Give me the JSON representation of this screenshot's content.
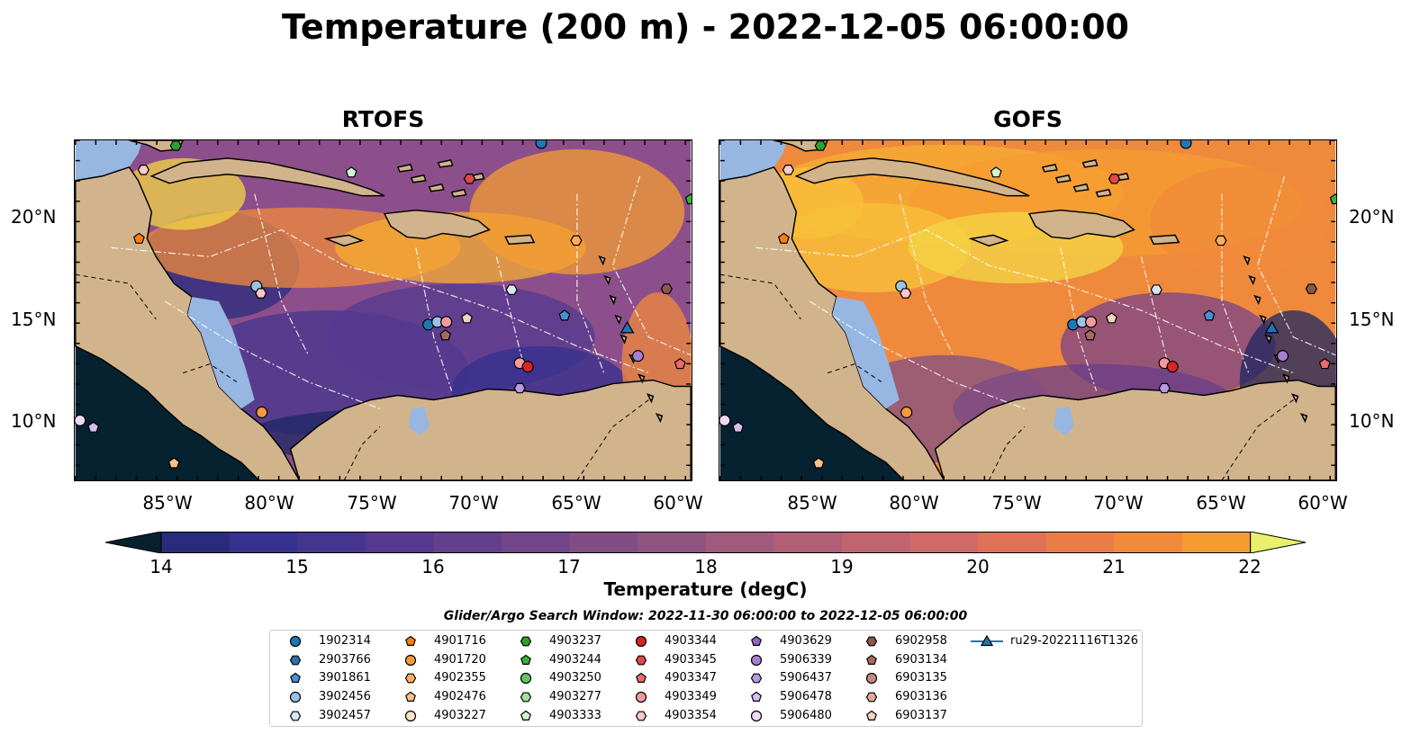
{
  "title": "Temperature (200 m) - 2022-12-05 06:00:00",
  "panels": [
    {
      "title": "RTOFS",
      "palette": "cool"
    },
    {
      "title": "GOFS",
      "palette": "warm"
    }
  ],
  "lon_ticks": [
    "85°W",
    "80°W",
    "75°W",
    "70°W",
    "65°W",
    "60°W"
  ],
  "lat_ticks": [
    "20°N",
    "15°N",
    "10°N"
  ],
  "colorbar": {
    "ticks": [
      "14",
      "15",
      "16",
      "17",
      "18",
      "19",
      "20",
      "21",
      "22"
    ],
    "label": "Temperature (degC)",
    "min": 14,
    "max": 22,
    "step": 0.5,
    "extend": "both"
  },
  "search_window": "Glider/Argo Search Window: 2022-11-30 06:00:00 to 2022-12-05 06:00:00",
  "legend": [
    {
      "id": "1902314",
      "marker": "circle",
      "color": "#1f77b4"
    },
    {
      "id": "2903766",
      "marker": "hexagon",
      "color": "#2f6fae"
    },
    {
      "id": "3901861",
      "marker": "pentagon",
      "color": "#4a90d0"
    },
    {
      "id": "3902456",
      "marker": "circle",
      "color": "#9cc3e6"
    },
    {
      "id": "3902457",
      "marker": "hexagon",
      "color": "#d7e8f5"
    },
    {
      "id": "4901716",
      "marker": "pentagon",
      "color": "#ff7f0e"
    },
    {
      "id": "4901720",
      "marker": "circle",
      "color": "#f59a3c"
    },
    {
      "id": "4902355",
      "marker": "hexagon",
      "color": "#ffad5e"
    },
    {
      "id": "4902476",
      "marker": "pentagon",
      "color": "#ffc18a"
    },
    {
      "id": "4903227",
      "marker": "circle",
      "color": "#ffe2c4"
    },
    {
      "id": "4903237",
      "marker": "hexagon",
      "color": "#2ca02c"
    },
    {
      "id": "4903244",
      "marker": "pentagon",
      "color": "#3bb33b"
    },
    {
      "id": "4903250",
      "marker": "circle",
      "color": "#62c862"
    },
    {
      "id": "4903277",
      "marker": "hexagon",
      "color": "#9ae39a"
    },
    {
      "id": "4903333",
      "marker": "pentagon",
      "color": "#cff7cf"
    },
    {
      "id": "4903344",
      "marker": "circle",
      "color": "#d62728"
    },
    {
      "id": "4903345",
      "marker": "hexagon",
      "color": "#e0484a"
    },
    {
      "id": "4903347",
      "marker": "pentagon",
      "color": "#ea6b6b"
    },
    {
      "id": "4903349",
      "marker": "circle",
      "color": "#f59a9a"
    },
    {
      "id": "4903354",
      "marker": "hexagon",
      "color": "#f8c9c9"
    },
    {
      "id": "4903629",
      "marker": "pentagon",
      "color": "#9467bd"
    },
    {
      "id": "5906339",
      "marker": "circle",
      "color": "#a67fd0"
    },
    {
      "id": "5906437",
      "marker": "hexagon",
      "color": "#b89ae0"
    },
    {
      "id": "5906478",
      "marker": "pentagon",
      "color": "#d5bff0"
    },
    {
      "id": "5906480",
      "marker": "circle",
      "color": "#ecd9fb"
    },
    {
      "id": "6902958",
      "marker": "hexagon",
      "color": "#8c564b"
    },
    {
      "id": "6903134",
      "marker": "pentagon",
      "color": "#a86a5c"
    },
    {
      "id": "6903135",
      "marker": "circle",
      "color": "#c58a7b"
    },
    {
      "id": "6903136",
      "marker": "hexagon",
      "color": "#ddab9d"
    },
    {
      "id": "6903137",
      "marker": "pentagon",
      "color": "#f2d2c5"
    },
    {
      "id": "ru29-20221116T1326",
      "marker": "triangle-line",
      "color": "#1f77b4"
    }
  ]
}
